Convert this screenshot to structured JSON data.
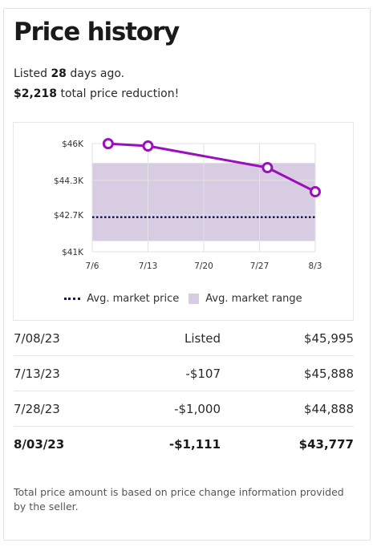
{
  "header": {
    "title": "Price history",
    "listed_prefix": "Listed ",
    "listed_days": "28",
    "listed_suffix": " days ago.",
    "reduction_amount": "$2,218",
    "reduction_suffix": " total price reduction!"
  },
  "chart_data": {
    "type": "line",
    "x": [
      "7/08",
      "7/13",
      "7/28",
      "8/03"
    ],
    "x_days": [
      2,
      7,
      22,
      28
    ],
    "x_ticks": [
      "7/6",
      "7/13",
      "7/20",
      "7/27",
      "8/3"
    ],
    "x_tick_days": [
      0,
      7,
      14,
      21,
      28
    ],
    "y_ticks": [
      "$46K",
      "$44.3K",
      "$42.7K",
      "$41K"
    ],
    "y_tick_values": [
      46000,
      44300,
      42700,
      41000
    ],
    "ylim": [
      41000,
      46000
    ],
    "series": [
      {
        "values": [
          45995,
          45888,
          44888,
          43777
        ]
      }
    ],
    "avg_market_price": 42600,
    "avg_market_range": [
      41500,
      45100
    ],
    "line_color": "#9c0fbd",
    "avg_price_color": "#1b1464",
    "range_color": "#d8cce3",
    "legend": [
      {
        "label": "Avg. market price",
        "swatch": "dotted-line"
      },
      {
        "label": "Avg. market range",
        "swatch": "square"
      }
    ],
    "grid": true
  },
  "history": [
    {
      "date": "7/08/23",
      "change": "Listed",
      "price": "$45,995"
    },
    {
      "date": "7/13/23",
      "change": "-$107",
      "price": "$45,888"
    },
    {
      "date": "7/28/23",
      "change": "-$1,000",
      "price": "$44,888"
    },
    {
      "date": "8/03/23",
      "change": "-$1,111",
      "price": "$43,777"
    }
  ],
  "footnote": "Total price amount is based on price change information provided by the seller."
}
